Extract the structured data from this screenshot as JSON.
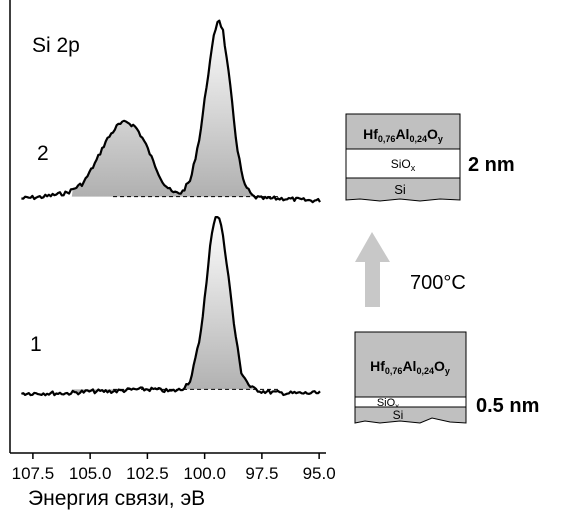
{
  "chart_data": {
    "type": "line",
    "title": "Si 2p",
    "xlabel": "Энергия связи, эВ",
    "ylabel": "",
    "x_reversed": true,
    "xlim": [
      108.5,
      94.7
    ],
    "ylim": [
      -0.3,
      2.05
    ],
    "xticks": [
      107.5,
      105.0,
      102.5,
      100.0,
      97.5,
      95.0
    ],
    "xtick_labels": [
      "107.5",
      "105.0",
      "102.5",
      "100.0",
      "97.5",
      "95.0"
    ],
    "grid": false,
    "series": [
      {
        "name": "2",
        "baseline_offset": 1.0,
        "points": [
          [
            108.0,
            0.02
          ],
          [
            107.0,
            0.03
          ],
          [
            106.0,
            0.05
          ],
          [
            105.3,
            0.1
          ],
          [
            104.8,
            0.2
          ],
          [
            104.3,
            0.32
          ],
          [
            103.8,
            0.4
          ],
          [
            103.4,
            0.42
          ],
          [
            103.0,
            0.39
          ],
          [
            102.6,
            0.31
          ],
          [
            102.2,
            0.2
          ],
          [
            101.8,
            0.1
          ],
          [
            101.4,
            0.05
          ],
          [
            101.0,
            0.05
          ],
          [
            100.6,
            0.12
          ],
          [
            100.2,
            0.35
          ],
          [
            99.9,
            0.62
          ],
          [
            99.6,
            0.86
          ],
          [
            99.4,
            0.96
          ],
          [
            99.2,
            0.89
          ],
          [
            98.9,
            0.62
          ],
          [
            98.6,
            0.3
          ],
          [
            98.3,
            0.1
          ],
          [
            97.9,
            0.03
          ],
          [
            97.5,
            0.02
          ],
          [
            96.5,
            0.02
          ],
          [
            95.5,
            0.01
          ],
          [
            94.9,
            0.01
          ]
        ]
      },
      {
        "name": "1",
        "baseline_offset": 0.0,
        "points": [
          [
            108.0,
            0.01
          ],
          [
            107.0,
            0.01
          ],
          [
            106.0,
            0.01
          ],
          [
            105.0,
            0.02
          ],
          [
            104.0,
            0.02
          ],
          [
            103.0,
            0.03
          ],
          [
            102.2,
            0.03
          ],
          [
            101.5,
            0.02
          ],
          [
            101.0,
            0.03
          ],
          [
            100.6,
            0.08
          ],
          [
            100.2,
            0.3
          ],
          [
            99.9,
            0.6
          ],
          [
            99.7,
            0.84
          ],
          [
            99.5,
            0.94
          ],
          [
            99.3,
            0.9
          ],
          [
            99.0,
            0.66
          ],
          [
            98.7,
            0.35
          ],
          [
            98.4,
            0.12
          ],
          [
            98.0,
            0.04
          ],
          [
            97.5,
            0.02
          ],
          [
            96.5,
            0.01
          ],
          [
            95.5,
            0.01
          ],
          [
            94.9,
            0.01
          ]
        ]
      }
    ],
    "annotations": {
      "temperature": "700°C"
    }
  },
  "stacks": [
    {
      "top_layer": {
        "base": "Hf",
        "sub1": "0,76",
        "mid": "Al",
        "sub2": "0,24",
        "tail": "O",
        "sub3": "y"
      },
      "oxide_label": {
        "base": "SiO",
        "sub": "x"
      },
      "substrate_label": "Si",
      "thickness_label": "2 nm"
    },
    {
      "top_layer": {
        "base": "Hf",
        "sub1": "0,76",
        "mid": "Al",
        "sub2": "0,24",
        "tail": "O",
        "sub3": "y"
      },
      "oxide_label": {
        "base": "SiO",
        "sub": "x"
      },
      "substrate_label": "Si",
      "thickness_label": "0.5 nm"
    }
  ],
  "colors": {
    "fill_top": "#ffffff",
    "fill_bottom": "#b0b0b0",
    "layer_gray": "#c0c0c0",
    "arrow_gray": "#c8c8c8",
    "line": "#000000"
  }
}
